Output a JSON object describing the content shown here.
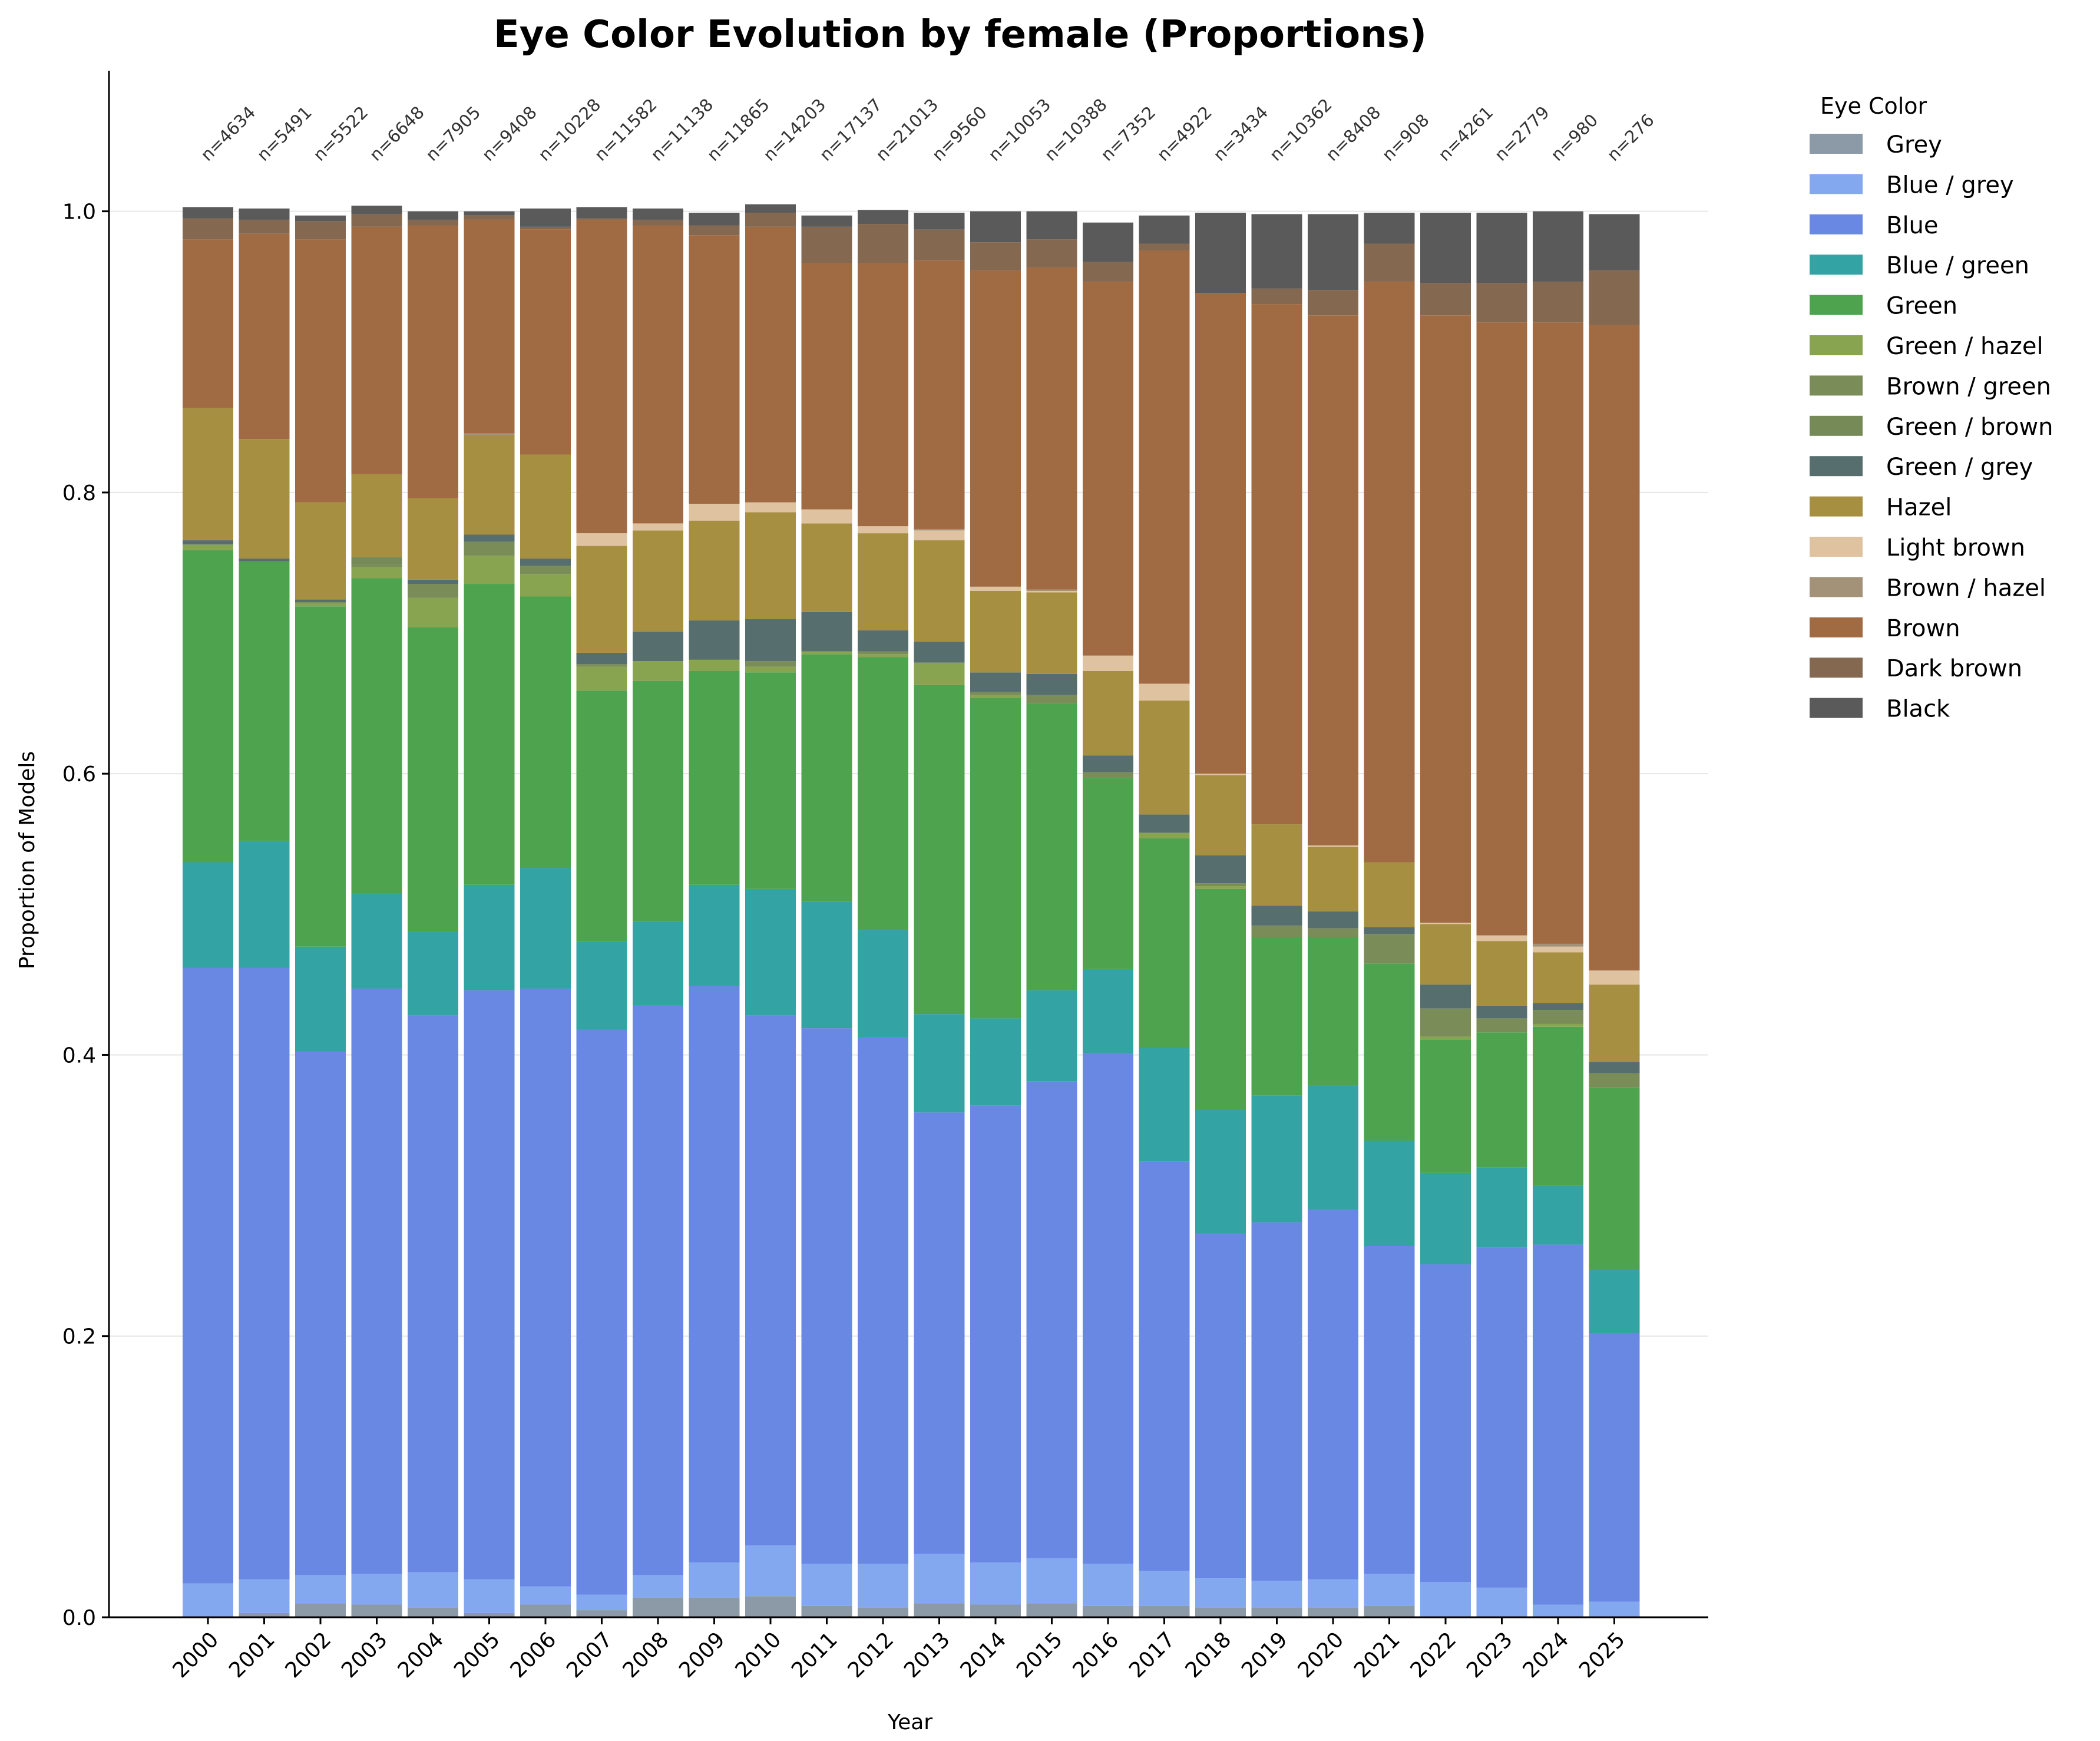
{
  "chart_data": {
    "type": "bar",
    "stacked": true,
    "title": "Eye Color Evolution by female (Proportions)",
    "xlabel": "Year",
    "ylabel": "Proportion of Models",
    "ylim": [
      0,
      1.1
    ],
    "yticks": [
      "0.0",
      "0.2",
      "0.4",
      "0.6",
      "0.8",
      "1.0"
    ],
    "grid": "horizontal",
    "legend": {
      "title": "Eye Color",
      "placement": "outside-right"
    },
    "categories": [
      "2000",
      "2001",
      "2002",
      "2003",
      "2004",
      "2005",
      "2006",
      "2007",
      "2008",
      "2009",
      "2010",
      "2011",
      "2012",
      "2013",
      "2014",
      "2015",
      "2016",
      "2017",
      "2018",
      "2019",
      "2020",
      "2021",
      "2022",
      "2023",
      "2024",
      "2025"
    ],
    "n_labels": [
      "n=4634",
      "n=5491",
      "n=5522",
      "n=6648",
      "n=7905",
      "n=9408",
      "n=10228",
      "n=11582",
      "n=11138",
      "n=11865",
      "n=14203",
      "n=17137",
      "n=21013",
      "n=9560",
      "n=10053",
      "n=10388",
      "n=7352",
      "n=4922",
      "n=3434",
      "n=10362",
      "n=8408",
      "n=908",
      "n=4261",
      "n=2779",
      "n=980",
      "n=276"
    ],
    "series": [
      {
        "name": "Grey",
        "color": "#8c99a6",
        "values": [
          0.0,
          0.003,
          0.01,
          0.009,
          0.007,
          0.003,
          0.009,
          0.005,
          0.014,
          0.014,
          0.015,
          0.008,
          0.007,
          0.01,
          0.009,
          0.01,
          0.008,
          0.008,
          0.007,
          0.007,
          0.007,
          0.008,
          0.0,
          0.0,
          0.0,
          0.0
        ]
      },
      {
        "name": "Blue / grey",
        "color": "#84a8ef",
        "values": [
          0.024,
          0.024,
          0.02,
          0.022,
          0.025,
          0.024,
          0.013,
          0.011,
          0.016,
          0.025,
          0.036,
          0.03,
          0.031,
          0.035,
          0.03,
          0.032,
          0.03,
          0.025,
          0.021,
          0.019,
          0.02,
          0.023,
          0.025,
          0.021,
          0.009,
          0.011
        ]
      },
      {
        "name": "Blue",
        "color": "#6888e4",
        "values": [
          0.438,
          0.435,
          0.372,
          0.416,
          0.396,
          0.419,
          0.425,
          0.402,
          0.405,
          0.41,
          0.377,
          0.381,
          0.374,
          0.314,
          0.325,
          0.339,
          0.363,
          0.291,
          0.245,
          0.255,
          0.263,
          0.233,
          0.226,
          0.242,
          0.256,
          0.191
        ]
      },
      {
        "name": "Blue / green",
        "color": "#33a3a3",
        "values": [
          0.075,
          0.09,
          0.075,
          0.068,
          0.06,
          0.075,
          0.086,
          0.063,
          0.06,
          0.072,
          0.09,
          0.09,
          0.077,
          0.07,
          0.062,
          0.065,
          0.06,
          0.081,
          0.088,
          0.09,
          0.088,
          0.075,
          0.065,
          0.057,
          0.042,
          0.045
        ]
      },
      {
        "name": "Green",
        "color": "#4ea44e",
        "values": [
          0.222,
          0.199,
          0.242,
          0.224,
          0.216,
          0.214,
          0.193,
          0.178,
          0.171,
          0.152,
          0.154,
          0.176,
          0.194,
          0.234,
          0.228,
          0.204,
          0.136,
          0.149,
          0.157,
          0.113,
          0.106,
          0.126,
          0.095,
          0.096,
          0.113,
          0.13
        ]
      },
      {
        "name": "Green / hazel",
        "color": "#88a450",
        "values": [
          0.004,
          0.0,
          0.002,
          0.008,
          0.021,
          0.02,
          0.016,
          0.017,
          0.014,
          0.008,
          0.004,
          0.002,
          0.002,
          0.016,
          0.002,
          0.0,
          0.0,
          0.004,
          0.002,
          0.0,
          0.0,
          0.0,
          0.002,
          0.0,
          0.002,
          0.0
        ]
      },
      {
        "name": "Brown / green",
        "color": "#7a8c58",
        "values": [
          0.0,
          0.0,
          0.001,
          0.002,
          0.01,
          0.01,
          0.006,
          0.002,
          0.0,
          0.0,
          0.004,
          0.0,
          0.002,
          0.0,
          0.002,
          0.006,
          0.004,
          0.0,
          0.002,
          0.008,
          0.006,
          0.021,
          0.02,
          0.01,
          0.01,
          0.01
        ]
      },
      {
        "name": "Green / brown",
        "color": "#768a58",
        "values": [
          0.0,
          0.0,
          0.0,
          0.005,
          0.0,
          0.0,
          0.0,
          0.0,
          0.0,
          0.0,
          0.0,
          0.0,
          0.0,
          0.0,
          0.0,
          0.0,
          0.0,
          0.0,
          0.0,
          0.0,
          0.0,
          0.0,
          0.0,
          0.0,
          0.0,
          0.0
        ]
      },
      {
        "name": "Green / grey",
        "color": "#576e6e",
        "values": [
          0.003,
          0.002,
          0.002,
          0.0,
          0.003,
          0.005,
          0.005,
          0.008,
          0.021,
          0.028,
          0.03,
          0.028,
          0.015,
          0.015,
          0.014,
          0.015,
          0.012,
          0.013,
          0.02,
          0.014,
          0.012,
          0.005,
          0.017,
          0.009,
          0.005,
          0.008
        ]
      },
      {
        "name": "Hazel",
        "color": "#a68f40",
        "values": [
          0.094,
          0.085,
          0.069,
          0.059,
          0.058,
          0.071,
          0.074,
          0.076,
          0.072,
          0.071,
          0.076,
          0.063,
          0.069,
          0.072,
          0.058,
          0.058,
          0.06,
          0.081,
          0.057,
          0.058,
          0.046,
          0.046,
          0.043,
          0.046,
          0.036,
          0.055
        ]
      },
      {
        "name": "Light brown",
        "color": "#dfc3a0",
        "values": [
          0.0,
          0.0,
          0.0,
          0.0,
          0.0,
          0.0,
          0.0,
          0.009,
          0.005,
          0.012,
          0.007,
          0.01,
          0.005,
          0.007,
          0.003,
          0.001,
          0.011,
          0.012,
          0.001,
          0.0,
          0.001,
          0.0,
          0.001,
          0.004,
          0.004,
          0.01
        ]
      },
      {
        "name": "Brown / hazel",
        "color": "#a39178",
        "values": [
          0.0,
          0.0,
          0.0,
          0.0,
          0.0,
          0.001,
          0.0,
          0.0,
          0.0,
          0.0,
          0.0,
          0.0,
          0.0,
          0.001,
          0.0,
          0.001,
          0.0,
          0.0,
          0.0,
          0.0,
          0.0,
          0.0,
          0.0,
          0.0,
          0.002,
          0.0
        ]
      },
      {
        "name": "Brown",
        "color": "#a06a43",
        "values": [
          0.12,
          0.146,
          0.187,
          0.176,
          0.194,
          0.152,
          0.16,
          0.223,
          0.212,
          0.191,
          0.196,
          0.175,
          0.187,
          0.191,
          0.225,
          0.229,
          0.266,
          0.308,
          0.342,
          0.37,
          0.377,
          0.413,
          0.432,
          0.436,
          0.442,
          0.459
        ]
      },
      {
        "name": "Dark brown",
        "color": "#846850",
        "values": [
          0.015,
          0.01,
          0.013,
          0.009,
          0.004,
          0.003,
          0.002,
          0.001,
          0.004,
          0.007,
          0.01,
          0.026,
          0.028,
          0.022,
          0.02,
          0.02,
          0.014,
          0.005,
          0.0,
          0.011,
          0.018,
          0.027,
          0.023,
          0.028,
          0.029,
          0.039
        ]
      },
      {
        "name": "Black",
        "color": "#5a5a5a",
        "values": [
          0.008,
          0.008,
          0.004,
          0.006,
          0.006,
          0.003,
          0.013,
          0.008,
          0.008,
          0.009,
          0.006,
          0.008,
          0.01,
          0.012,
          0.022,
          0.02,
          0.028,
          0.02,
          0.057,
          0.053,
          0.054,
          0.022,
          0.05,
          0.05,
          0.05,
          0.04
        ]
      }
    ]
  }
}
